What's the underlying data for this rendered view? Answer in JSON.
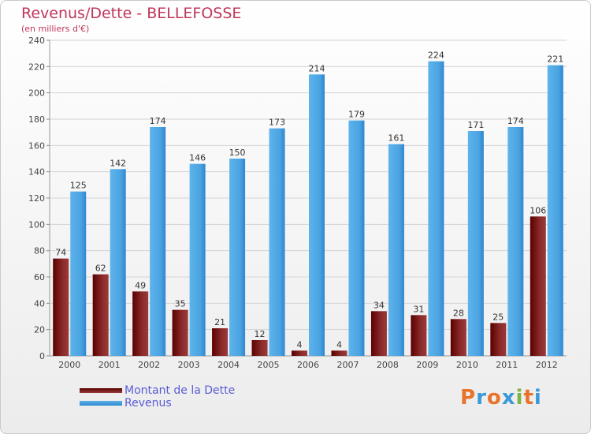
{
  "title": "Revenus/Dette - BELLEFOSSE",
  "subtitle": "(en milliers d'€)",
  "logo": {
    "text": "Proxiti",
    "colors": [
      "#e8732a",
      "#3a9ad9",
      "#e8732a",
      "#3a9ad9",
      "#7cb342",
      "#e8732a",
      "#3a9ad9"
    ]
  },
  "colors": {
    "dette_dark": "#5a0000",
    "dette_light": "#9c3a3a",
    "revenus_dark": "#2e86cf",
    "revenus_light": "#5db4ec",
    "title": "#c0365a",
    "legend_text": "#5b5bd6"
  },
  "chart_data": {
    "type": "bar",
    "title": "Revenus/Dette - BELLEFOSSE",
    "subtitle": "(en milliers d'€)",
    "categories": [
      "2000",
      "2001",
      "2002",
      "2003",
      "2004",
      "2005",
      "2006",
      "2007",
      "2008",
      "2009",
      "2010",
      "2011",
      "2012"
    ],
    "series": [
      {
        "name": "Montant de la Dette",
        "values": [
          74,
          62,
          49,
          35,
          21,
          12,
          4,
          4,
          34,
          31,
          28,
          25,
          106
        ]
      },
      {
        "name": "Revenus",
        "values": [
          125,
          142,
          174,
          146,
          150,
          173,
          214,
          179,
          161,
          224,
          171,
          174,
          221
        ]
      }
    ],
    "ylim": [
      0,
      240
    ],
    "yticks": [
      0,
      20,
      40,
      60,
      80,
      100,
      120,
      140,
      160,
      180,
      200,
      220,
      240
    ],
    "grid": true,
    "legend": "bottom-left"
  }
}
